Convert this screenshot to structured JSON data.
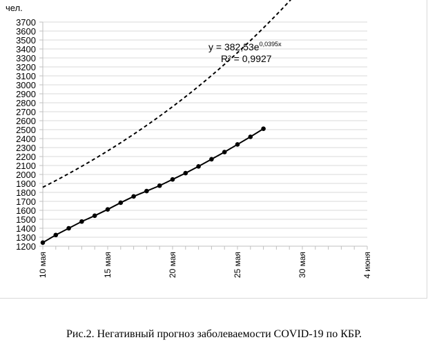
{
  "caption": "Рис.2. Негативный прогноз заболеваемости COVID-19 по КБР.",
  "chart_data": {
    "type": "line",
    "ylabel": "чел.",
    "ylim": [
      1200,
      3700
    ],
    "y_ticks": [
      1200,
      1300,
      1400,
      1500,
      1600,
      1700,
      1800,
      1900,
      2000,
      2100,
      2200,
      2300,
      2400,
      2500,
      2600,
      2700,
      2800,
      2900,
      3000,
      3100,
      3200,
      3300,
      3400,
      3500,
      3600,
      3700
    ],
    "xlim": [
      10,
      35
    ],
    "x_ticks": [
      {
        "x": 10,
        "label": "10 мая"
      },
      {
        "x": 15,
        "label": "15 мая"
      },
      {
        "x": 20,
        "label": "20 мая"
      },
      {
        "x": 25,
        "label": "25 мая"
      },
      {
        "x": 30,
        "label": "30 мая"
      },
      {
        "x": 35,
        "label": "4 июня"
      }
    ],
    "grid": "horizontal",
    "series": [
      {
        "style": "solid-with-markers",
        "color": "#000000",
        "x": [
          10,
          11,
          12,
          13,
          14,
          15,
          16,
          17,
          18,
          19,
          20,
          21,
          22,
          23,
          24,
          25,
          26,
          27
        ],
        "y": [
          1240,
          1325,
          1400,
          1475,
          1540,
          1610,
          1685,
          1755,
          1815,
          1875,
          1945,
          2015,
          2090,
          2170,
          2250,
          2335,
          2420,
          2510
        ]
      }
    ],
    "trendline": {
      "style": "dashed",
      "color": "#000000",
      "equation_line1": "y = 382,53e",
      "equation_exp": "0,0395x",
      "r2": "R² = 0,9927",
      "a": 382.53,
      "b": 0.0395,
      "x0_index": 40,
      "x_from": 10,
      "x_to": 35
    }
  }
}
